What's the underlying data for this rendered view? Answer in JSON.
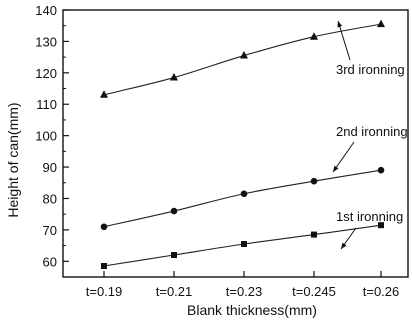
{
  "chart_data": {
    "type": "line",
    "xlabel": "Blank thickness(mm)",
    "ylabel": "Height of can(mm)",
    "categories": [
      "t=0.19",
      "t=0.21",
      "t=0.23",
      "t=0.245",
      "t=0.26"
    ],
    "ylim": [
      55,
      140
    ],
    "yticks": [
      60,
      70,
      80,
      90,
      100,
      110,
      120,
      130,
      140
    ],
    "grid": false,
    "series": [
      {
        "name": "1st ironning",
        "marker": "square",
        "values": [
          58.5,
          62,
          65.5,
          68.5,
          71.5
        ]
      },
      {
        "name": "2nd ironning",
        "marker": "circle",
        "values": [
          71,
          76,
          81.5,
          85.5,
          89
        ]
      },
      {
        "name": "3rd ironning",
        "marker": "triangle",
        "values": [
          113,
          118.5,
          125.5,
          131.5,
          135.5
        ]
      }
    ],
    "annotations": [
      {
        "text": "1st ironning",
        "series": 0
      },
      {
        "text": "2nd ironning",
        "series": 1
      },
      {
        "text": "3rd ironning",
        "series": 2
      }
    ]
  }
}
